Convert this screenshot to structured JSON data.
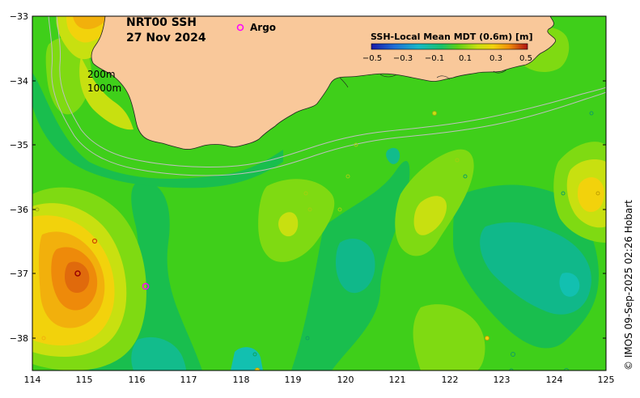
{
  "map": {
    "title_line1": "NRT00 SSH",
    "title_line2": "27 Nov 2024",
    "legend_argo": "Argo",
    "contour_200": "200m",
    "contour_1000": "1000m",
    "colorbar_title": "SSH-Local Mean MDT (0.6m) [m]",
    "colorbar_ticks": [
      "−0.5",
      "−0.3",
      "−0.1",
      "0.1",
      "0.3",
      "0.5"
    ],
    "credit": "© IMOS 09-Sep-2025 02:26 Hobart",
    "x_ticks": [
      "114",
      "115",
      "116",
      "117",
      "118",
      "119",
      "120",
      "121",
      "122",
      "123",
      "124",
      "125"
    ],
    "y_ticks": [
      "−33",
      "−34",
      "−35",
      "−36",
      "−37",
      "−38"
    ],
    "colors": {
      "land": "#f9c89a",
      "sea_base": "#3fcf1a",
      "argo_marker": "#ff00ff"
    }
  }
}
